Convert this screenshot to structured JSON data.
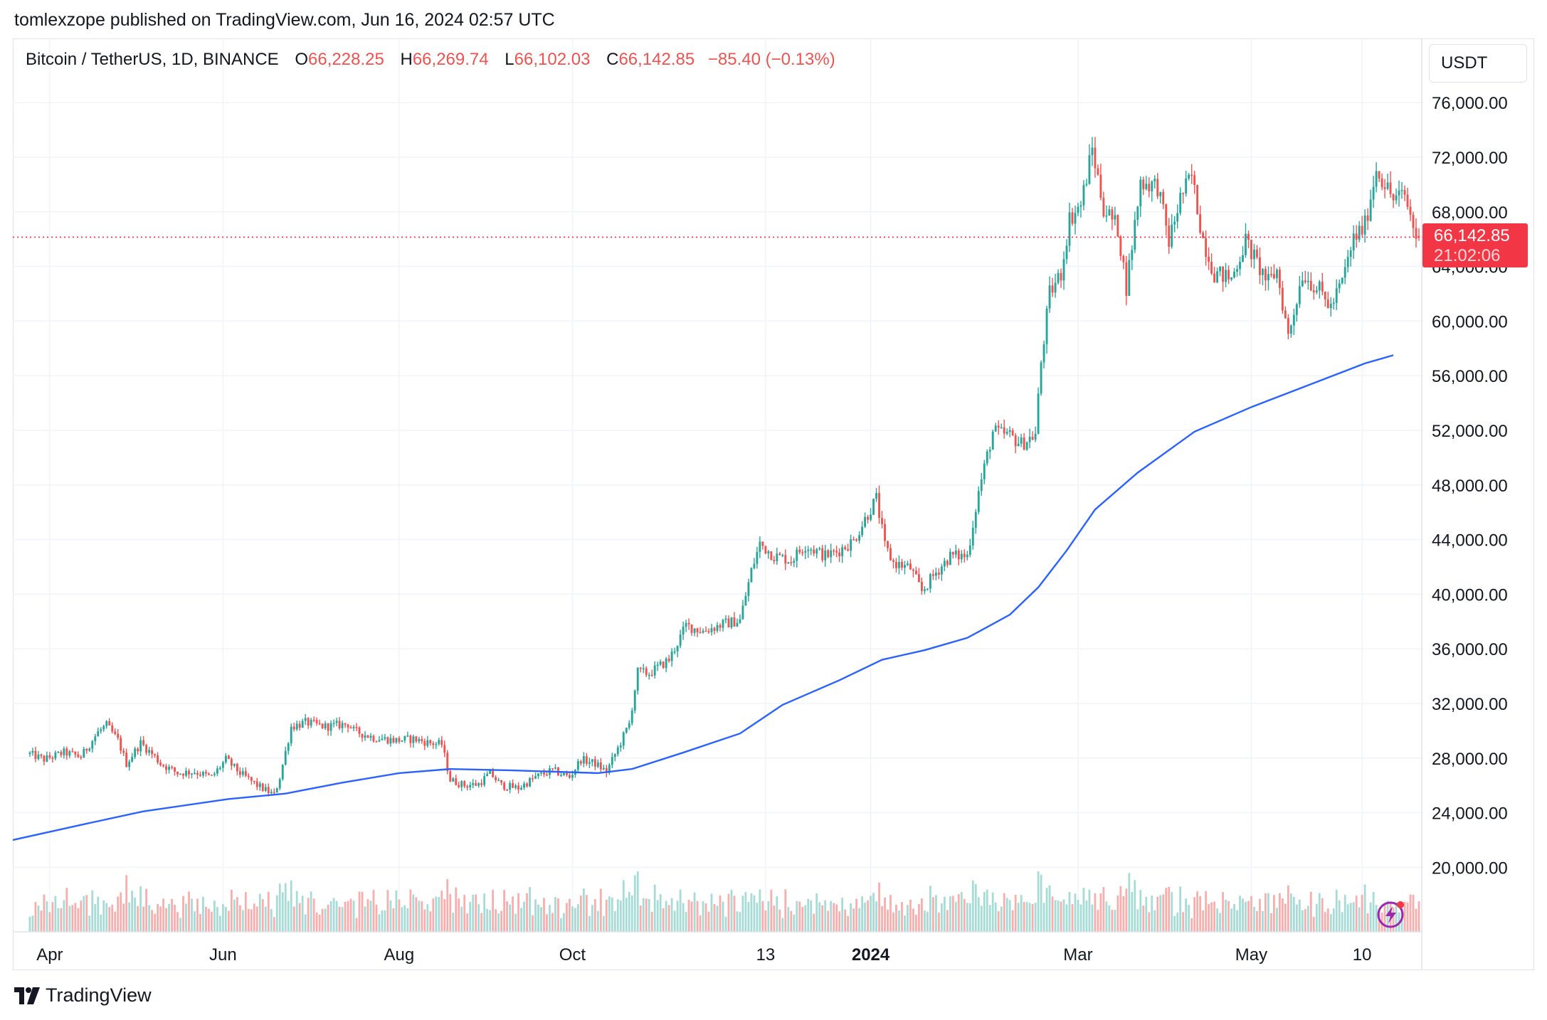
{
  "header": {
    "publisher_line": "tomlexzope published on TradingView.com, Jun 16, 2024 02:57 UTC"
  },
  "legend": {
    "symbol": "Bitcoin / TetherUS, 1D, BINANCE",
    "open_label": "O",
    "open": "66,228.25",
    "high_label": "H",
    "high": "66,269.74",
    "low_label": "L",
    "low": "66,102.03",
    "close_label": "C",
    "close": "66,142.85",
    "change": "−85.40 (−0.13%)"
  },
  "currency_button": "USDT",
  "last_price_tag": {
    "price": "66,142.85",
    "countdown": "21:02:06"
  },
  "branding": {
    "logo_text": "TradingView"
  },
  "colors": {
    "up": "#26a69a",
    "down": "#ef5350",
    "ma_line": "#2962ff",
    "grid": "#f0f3fa",
    "volume_up": "#a6dbd6",
    "volume_down": "#f7aeac",
    "price_tag": "#f23645"
  },
  "icons": {
    "badge": "lightning-bolt-icon",
    "logo": "tradingview-logo-icon"
  },
  "chart_data": {
    "type": "candlestick",
    "title": "Bitcoin / TetherUS, 1D, BINANCE",
    "y_axis": {
      "range": [
        15800,
        78300
      ],
      "ticks": [
        "76,000.00",
        "72,000.00",
        "68,000.00",
        "64,000.00",
        "60,000.00",
        "56,000.00",
        "52,000.00",
        "48,000.00",
        "44,000.00",
        "40,000.00",
        "36,000.00",
        "32,000.00",
        "28,000.00",
        "24,000.00",
        "20,000.00"
      ],
      "tick_values": [
        76000,
        72000,
        68000,
        64000,
        60000,
        56000,
        52000,
        48000,
        44000,
        40000,
        36000,
        32000,
        28000,
        24000,
        20000
      ]
    },
    "x_axis": {
      "labels": [
        "Apr",
        "Jun",
        "Aug",
        "Oct",
        "13",
        "2024",
        "Mar",
        "May",
        "10"
      ],
      "label_days": [
        7,
        68,
        130,
        191,
        259,
        296,
        369,
        430,
        469
      ],
      "day_range": [
        -6,
        489
      ]
    },
    "last_price": 66142.85,
    "grid": true,
    "series": [
      {
        "kind": "price_anchors",
        "points": [
          [
            0,
            28300
          ],
          [
            5,
            27900
          ],
          [
            12,
            28400
          ],
          [
            18,
            28100
          ],
          [
            24,
            29900
          ],
          [
            27,
            30400
          ],
          [
            31,
            29300
          ],
          [
            34,
            27600
          ],
          [
            39,
            29100
          ],
          [
            44,
            28100
          ],
          [
            46,
            27600
          ],
          [
            52,
            26900
          ],
          [
            58,
            27000
          ],
          [
            64,
            26600
          ],
          [
            69,
            27900
          ],
          [
            74,
            26900
          ],
          [
            80,
            26000
          ],
          [
            86,
            25300
          ],
          [
            88,
            26600
          ],
          [
            92,
            30300
          ],
          [
            97,
            30600
          ],
          [
            104,
            30300
          ],
          [
            112,
            30500
          ],
          [
            114,
            30000
          ],
          [
            121,
            29500
          ],
          [
            129,
            29300
          ],
          [
            135,
            29400
          ],
          [
            141,
            29100
          ],
          [
            145,
            29000
          ],
          [
            148,
            26400
          ],
          [
            153,
            26000
          ],
          [
            158,
            26100
          ],
          [
            162,
            26900
          ],
          [
            166,
            26000
          ],
          [
            172,
            25800
          ],
          [
            178,
            26600
          ],
          [
            184,
            27100
          ],
          [
            190,
            26600
          ],
          [
            194,
            27900
          ],
          [
            199,
            27600
          ],
          [
            203,
            27000
          ],
          [
            207,
            28700
          ],
          [
            211,
            30500
          ],
          [
            214,
            34300
          ],
          [
            218,
            34200
          ],
          [
            225,
            35200
          ],
          [
            231,
            37700
          ],
          [
            237,
            37300
          ],
          [
            244,
            37800
          ],
          [
            250,
            38100
          ],
          [
            254,
            41700
          ],
          [
            257,
            43700
          ],
          [
            262,
            42800
          ],
          [
            268,
            42500
          ],
          [
            273,
            43600
          ],
          [
            280,
            42800
          ],
          [
            284,
            43100
          ],
          [
            290,
            43900
          ],
          [
            294,
            45500
          ],
          [
            298,
            47000
          ],
          [
            301,
            43500
          ],
          [
            304,
            42300
          ],
          [
            310,
            41900
          ],
          [
            314,
            40200
          ],
          [
            319,
            41600
          ],
          [
            324,
            42800
          ],
          [
            330,
            42800
          ],
          [
            334,
            47500
          ],
          [
            339,
            51900
          ],
          [
            345,
            51600
          ],
          [
            349,
            51000
          ],
          [
            354,
            51700
          ],
          [
            356,
            57000
          ],
          [
            359,
            62000
          ],
          [
            363,
            63500
          ],
          [
            366,
            67500
          ],
          [
            370,
            68500
          ],
          [
            374,
            72600
          ],
          [
            378,
            68300
          ],
          [
            383,
            66800
          ],
          [
            386,
            62500
          ],
          [
            391,
            70200
          ],
          [
            397,
            69900
          ],
          [
            401,
            65800
          ],
          [
            405,
            69000
          ],
          [
            409,
            70600
          ],
          [
            413,
            66000
          ],
          [
            417,
            63500
          ],
          [
            423,
            63100
          ],
          [
            428,
            65900
          ],
          [
            432,
            64200
          ],
          [
            436,
            62800
          ],
          [
            439,
            63700
          ],
          [
            443,
            58900
          ],
          [
            448,
            63500
          ],
          [
            454,
            62200
          ],
          [
            458,
            61000
          ],
          [
            462,
            62900
          ],
          [
            466,
            66000
          ],
          [
            470,
            67000
          ],
          [
            474,
            71200
          ],
          [
            480,
            68900
          ],
          [
            484,
            69200
          ],
          [
            488,
            66200
          ],
          [
            489,
            66143
          ]
        ]
      },
      {
        "kind": "moving_average",
        "line_color": "#2962ff",
        "points": [
          [
            -6,
            22000
          ],
          [
            20,
            23200
          ],
          [
            40,
            24100
          ],
          [
            70,
            25000
          ],
          [
            90,
            25400
          ],
          [
            110,
            26200
          ],
          [
            130,
            26900
          ],
          [
            148,
            27200
          ],
          [
            170,
            27100
          ],
          [
            200,
            26900
          ],
          [
            212,
            27200
          ],
          [
            230,
            28400
          ],
          [
            250,
            29800
          ],
          [
            265,
            31900
          ],
          [
            285,
            33700
          ],
          [
            300,
            35200
          ],
          [
            315,
            35900
          ],
          [
            330,
            36800
          ],
          [
            345,
            38500
          ],
          [
            355,
            40500
          ],
          [
            365,
            43200
          ],
          [
            375,
            46200
          ],
          [
            390,
            48900
          ],
          [
            410,
            51900
          ],
          [
            430,
            53700
          ],
          [
            450,
            55300
          ],
          [
            470,
            56900
          ],
          [
            480,
            57500
          ]
        ]
      }
    ]
  }
}
